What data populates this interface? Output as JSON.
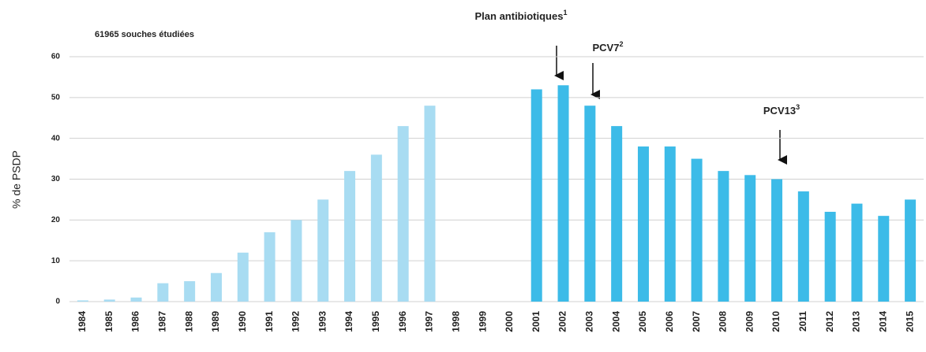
{
  "chart_data": {
    "type": "bar",
    "subtitle": "61965 souches étudiées",
    "ylabel": "% de PSDP",
    "categories": [
      "1984",
      "1985",
      "1986",
      "1987",
      "1988",
      "1989",
      "1990",
      "1991",
      "1992",
      "1993",
      "1994",
      "1995",
      "1996",
      "1997",
      "1998",
      "1999",
      "2000",
      "2001",
      "2002",
      "2003",
      "2004",
      "2005",
      "2006",
      "2007",
      "2008",
      "2009",
      "2010",
      "2011",
      "2012",
      "2013",
      "2014",
      "2015"
    ],
    "values": [
      0.3,
      0.5,
      1,
      4.5,
      5,
      7,
      12,
      17,
      20,
      25,
      32,
      36,
      43,
      48,
      null,
      null,
      null,
      52,
      53,
      48,
      43,
      38,
      38,
      35,
      32,
      31,
      30,
      27,
      22,
      24,
      21,
      25
    ],
    "colors": [
      "#a8dcf2",
      "#a8dcf2",
      "#a8dcf2",
      "#a8dcf2",
      "#a8dcf2",
      "#a8dcf2",
      "#a8dcf2",
      "#a8dcf2",
      "#a8dcf2",
      "#a8dcf2",
      "#a8dcf2",
      "#a8dcf2",
      "#a8dcf2",
      "#a8dcf2",
      "#a8dcf2",
      "#a8dcf2",
      "#a8dcf2",
      "#3cbbe8",
      "#3cbbe8",
      "#3cbbe8",
      "#3cbbe8",
      "#3cbbe8",
      "#3cbbe8",
      "#3cbbe8",
      "#3cbbe8",
      "#3cbbe8",
      "#3cbbe8",
      "#3cbbe8",
      "#3cbbe8",
      "#3cbbe8",
      "#3cbbe8",
      "#3cbbe8"
    ],
    "ylim": [
      0,
      60
    ],
    "yticks": [
      0,
      10,
      20,
      30,
      40,
      50,
      60
    ],
    "grid": true,
    "annotations": [
      {
        "text": "Plan antibiotiques",
        "sup": "1"
      },
      {
        "text": "PCV7",
        "sup": "2"
      },
      {
        "text": "PCV13",
        "sup": "3"
      }
    ]
  }
}
